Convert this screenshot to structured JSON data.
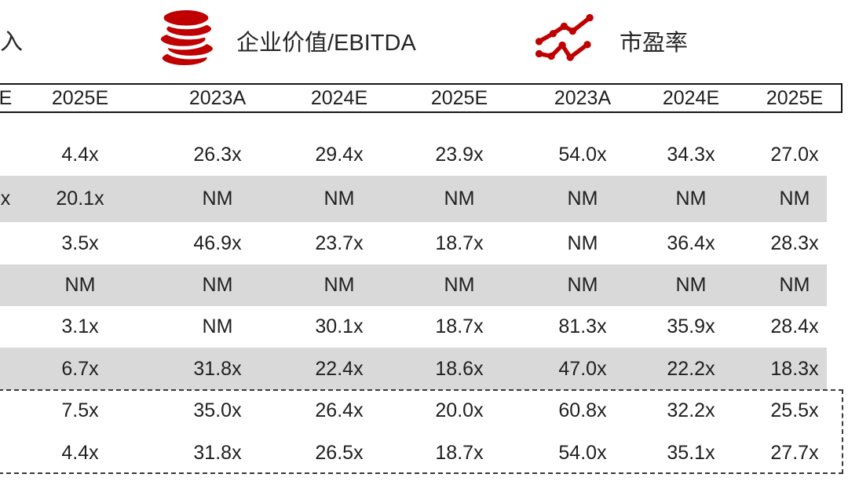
{
  "legend": {
    "partial_label": "入",
    "items": [
      {
        "icon": "coins-icon",
        "label": "企业价值/EBITDA"
      },
      {
        "icon": "line-chart-icon",
        "label": "市盈率"
      }
    ]
  },
  "table": {
    "columns": [
      "E",
      "2025E",
      "2023A",
      "2024E",
      "2025E",
      "2023A",
      "2024E",
      "2025E"
    ],
    "rows": [
      {
        "shaded": false,
        "values": [
          "",
          "4.4x",
          "26.3x",
          "29.4x",
          "23.9x",
          "54.0x",
          "34.3x",
          "27.0x"
        ]
      },
      {
        "shaded": true,
        "values": [
          "x",
          "20.1x",
          "NM",
          "NM",
          "NM",
          "NM",
          "NM",
          "NM"
        ]
      },
      {
        "shaded": false,
        "values": [
          "",
          "3.5x",
          "46.9x",
          "23.7x",
          "18.7x",
          "NM",
          "36.4x",
          "28.3x"
        ]
      },
      {
        "shaded": true,
        "values": [
          "",
          "NM",
          "NM",
          "NM",
          "NM",
          "NM",
          "NM",
          "NM"
        ]
      },
      {
        "shaded": false,
        "values": [
          "",
          "3.1x",
          "NM",
          "30.1x",
          "18.7x",
          "81.3x",
          "35.9x",
          "28.4x"
        ]
      },
      {
        "shaded": true,
        "values": [
          "",
          "6.7x",
          "31.8x",
          "22.4x",
          "18.6x",
          "47.0x",
          "22.2x",
          "18.3x"
        ]
      },
      {
        "shaded": false,
        "values": [
          "",
          "7.5x",
          "35.0x",
          "26.4x",
          "20.0x",
          "60.8x",
          "32.2x",
          "25.5x"
        ]
      },
      {
        "shaded": false,
        "values": [
          "",
          "4.4x",
          "31.8x",
          "26.5x",
          "18.7x",
          "54.0x",
          "35.1x",
          "27.7x"
        ]
      }
    ]
  },
  "colors": {
    "accent_red": "#c00000",
    "shaded_row": "#d9d9d9",
    "line": "#141414",
    "text": "#1f1f1f"
  }
}
